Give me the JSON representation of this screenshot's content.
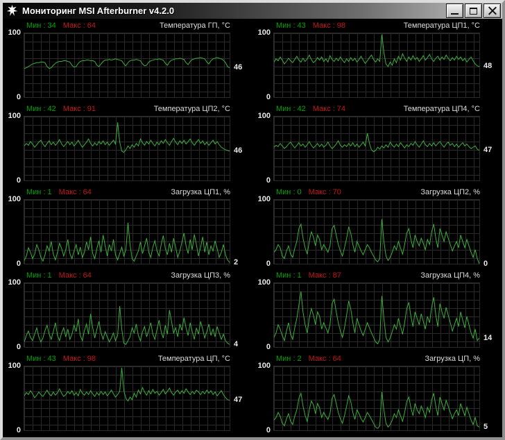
{
  "window": {
    "title": "Мониторинг MSI Afterburner v4.2.0"
  },
  "titlebar": {
    "buttons": [
      {
        "name": "minimize"
      },
      {
        "name": "maximize"
      },
      {
        "name": "close"
      }
    ]
  },
  "colors": {
    "line": "#3ab33a",
    "min_text": "#00a400",
    "max_text": "#c41616",
    "grid": "#2b2b2b",
    "panel_title": "#dcdcdc",
    "axis_text": "#eaeaea",
    "titlebar_gradient": [
      "#050505",
      "#c8c8c8"
    ]
  },
  "axis": {
    "top": "100",
    "bottom": "0"
  },
  "panels": [
    {
      "title": "Температура ГП, °C",
      "min_label": "Мин : 34",
      "max_label": "Макс : 64",
      "current": "46",
      "values": [
        45,
        46,
        48,
        50,
        52,
        53,
        54,
        54,
        55,
        55,
        54,
        48,
        45,
        46,
        50,
        53,
        55,
        56,
        56,
        57,
        57,
        56,
        55,
        50,
        47,
        48,
        53,
        56,
        57,
        57,
        58,
        58,
        57,
        57,
        56,
        50,
        48,
        52,
        56,
        58,
        58,
        59,
        58,
        59,
        60,
        59,
        58,
        57,
        52,
        49,
        54,
        57,
        58,
        58,
        59,
        58,
        57,
        52,
        49,
        50,
        55,
        57,
        58,
        59,
        59,
        60,
        59,
        58,
        53,
        50,
        55,
        58,
        59,
        60,
        60,
        61,
        60,
        59,
        54,
        51,
        56,
        59,
        60,
        61,
        61,
        62,
        61,
        60,
        55,
        52,
        57,
        60,
        61,
        62,
        61,
        60,
        58,
        54,
        48,
        46
      ]
    },
    {
      "title": "Температура ЦП1, °C",
      "min_label": "Мин : 43",
      "max_label": "Макс : 98",
      "current": "48",
      "values": [
        55,
        60,
        57,
        63,
        58,
        52,
        56,
        61,
        57,
        54,
        59,
        64,
        58,
        55,
        61,
        56,
        60,
        66,
        59,
        54,
        57,
        62,
        58,
        63,
        56,
        60,
        55,
        65,
        59,
        56,
        61,
        57,
        63,
        58,
        54,
        60,
        56,
        62,
        57,
        61,
        55,
        59,
        64,
        58,
        53,
        57,
        62,
        66,
        59,
        55,
        60,
        56,
        98,
        70,
        52,
        48,
        55,
        50,
        60,
        54,
        64,
        58,
        68,
        61,
        56,
        63,
        58,
        65,
        59,
        62,
        56,
        60,
        65,
        58,
        62,
        67,
        60,
        56,
        61,
        64,
        58,
        63,
        59,
        66,
        61,
        57,
        62,
        58,
        64,
        59,
        63,
        57,
        61,
        55,
        59,
        63,
        57,
        52,
        49,
        48
      ]
    },
    {
      "title": "Температура ЦП2, °C",
      "min_label": "Мин : 42",
      "max_label": "Макс : 91",
      "current": "46",
      "values": [
        54,
        58,
        55,
        61,
        57,
        52,
        56,
        60,
        63,
        57,
        53,
        58,
        62,
        56,
        60,
        55,
        59,
        64,
        57,
        53,
        57,
        61,
        56,
        60,
        54,
        58,
        63,
        57,
        52,
        56,
        60,
        65,
        58,
        54,
        59,
        55,
        61,
        57,
        62,
        56,
        60,
        55,
        59,
        63,
        57,
        91,
        60,
        46,
        44,
        48,
        54,
        50,
        56,
        52,
        58,
        54,
        65,
        59,
        55,
        61,
        57,
        63,
        58,
        54,
        60,
        56,
        62,
        58,
        64,
        59,
        55,
        61,
        66,
        60,
        56,
        62,
        58,
        63,
        57,
        61,
        65,
        59,
        55,
        60,
        64,
        58,
        62,
        56,
        60,
        55,
        59,
        63,
        57,
        61,
        56,
        52,
        50,
        48,
        47,
        46
      ]
    },
    {
      "title": "Температура ЦП4, °C",
      "min_label": "Мин : 42",
      "max_label": "Макс : 74",
      "current": "47",
      "values": [
        52,
        55,
        53,
        58,
        54,
        50,
        53,
        57,
        60,
        55,
        51,
        55,
        59,
        54,
        57,
        52,
        56,
        61,
        55,
        51,
        54,
        58,
        53,
        57,
        52,
        55,
        60,
        54,
        50,
        53,
        57,
        62,
        55,
        52,
        56,
        53,
        58,
        54,
        59,
        53,
        57,
        52,
        56,
        60,
        54,
        74,
        58,
        48,
        45,
        47,
        52,
        49,
        54,
        51,
        56,
        52,
        60,
        55,
        52,
        57,
        53,
        59,
        55,
        51,
        56,
        53,
        58,
        55,
        61,
        56,
        52,
        57,
        62,
        56,
        53,
        58,
        54,
        59,
        54,
        58,
        61,
        56,
        52,
        57,
        60,
        55,
        58,
        53,
        57,
        52,
        56,
        59,
        54,
        57,
        53,
        50,
        52,
        54,
        49,
        47
      ]
    },
    {
      "title": "Загрузка ЦП1, %",
      "min_label": "Мин : 1",
      "max_label": "Макс : 64",
      "current": "2",
      "values": [
        5,
        12,
        25,
        18,
        8,
        15,
        30,
        22,
        10,
        4,
        14,
        28,
        20,
        35,
        15,
        6,
        18,
        32,
        24,
        12,
        22,
        38,
        16,
        8,
        20,
        30,
        14,
        26,
        10,
        18,
        34,
        22,
        42,
        16,
        8,
        24,
        36,
        18,
        45,
        28,
        12,
        30,
        20,
        38,
        14,
        6,
        16,
        26,
        12,
        22,
        64,
        30,
        8,
        4,
        12,
        20,
        34,
        16,
        28,
        40,
        18,
        10,
        26,
        36,
        20,
        12,
        30,
        44,
        24,
        14,
        32,
        18,
        40,
        26,
        10,
        20,
        34,
        48,
        28,
        16,
        38,
        22,
        46,
        30,
        12,
        26,
        42,
        18,
        34,
        14,
        28,
        20,
        36,
        24,
        10,
        18,
        30,
        14,
        6,
        2
      ]
    },
    {
      "title": "Загрузка ЦП2, %",
      "min_label": "Мин : 0",
      "max_label": "Макс : 70",
      "current": "0",
      "values": [
        18,
        22,
        30,
        25,
        12,
        8,
        20,
        28,
        15,
        10,
        24,
        35,
        55,
        62,
        40,
        25,
        15,
        35,
        50,
        42,
        28,
        45,
        38,
        22,
        30,
        24,
        18,
        28,
        55,
        60,
        45,
        30,
        20,
        12,
        25,
        40,
        58,
        48,
        30,
        18,
        35,
        28,
        20,
        14,
        22,
        30,
        25,
        18,
        12,
        6,
        3,
        8,
        70,
        35,
        12,
        5,
        10,
        18,
        28,
        22,
        35,
        25,
        15,
        30,
        48,
        55,
        38,
        25,
        45,
        35,
        28,
        40,
        32,
        22,
        38,
        30,
        50,
        62,
        40,
        25,
        55,
        45,
        35,
        50,
        40,
        30,
        20,
        28,
        35,
        25,
        45,
        35,
        25,
        38,
        28,
        18,
        10,
        22,
        8,
        0
      ]
    },
    {
      "title": "Загрузка ЦП3, %",
      "min_label": "Мин : 1",
      "max_label": "Макс : 64",
      "current": "4",
      "values": [
        8,
        18,
        25,
        15,
        10,
        20,
        30,
        16,
        8,
        14,
        26,
        34,
        20,
        12,
        24,
        38,
        18,
        10,
        22,
        30,
        16,
        28,
        12,
        20,
        34,
        24,
        44,
        18,
        10,
        26,
        36,
        20,
        52,
        30,
        14,
        28,
        40,
        22,
        12,
        24,
        16,
        8,
        14,
        22,
        10,
        18,
        64,
        28,
        6,
        4,
        10,
        16,
        30,
        22,
        36,
        18,
        10,
        24,
        32,
        16,
        26,
        38,
        20,
        12,
        28,
        42,
        24,
        14,
        34,
        20,
        58,
        40,
        22,
        30,
        16,
        36,
        26,
        46,
        30,
        18,
        38,
        24,
        12,
        30,
        20,
        40,
        28,
        14,
        24,
        36,
        18,
        28,
        16,
        32,
        22,
        12,
        20,
        10,
        6,
        4
      ]
    },
    {
      "title": "Загрузка ЦП4, %",
      "min_label": "Мин : 1",
      "max_label": "Макс : 87",
      "current": "14",
      "values": [
        15,
        22,
        35,
        28,
        18,
        10,
        25,
        38,
        20,
        12,
        30,
        45,
        65,
        87,
        55,
        35,
        22,
        45,
        60,
        50,
        35,
        55,
        48,
        28,
        38,
        30,
        22,
        35,
        68,
        75,
        55,
        38,
        25,
        15,
        30,
        50,
        72,
        60,
        38,
        22,
        45,
        35,
        25,
        18,
        28,
        38,
        30,
        22,
        15,
        8,
        5,
        12,
        80,
        45,
        15,
        8,
        14,
        24,
        35,
        28,
        45,
        32,
        20,
        38,
        60,
        70,
        48,
        32,
        55,
        45,
        35,
        52,
        40,
        28,
        48,
        38,
        62,
        78,
        50,
        32,
        68,
        55,
        45,
        62,
        50,
        38,
        25,
        35,
        45,
        32,
        55,
        42,
        30,
        48,
        35,
        22,
        14,
        28,
        10,
        14
      ]
    },
    {
      "title": "Температура ЦП, °C",
      "min_label": "Мин : 43",
      "max_label": "Макс : 98",
      "current": "47",
      "values": [
        54,
        59,
        56,
        62,
        57,
        51,
        55,
        60,
        56,
        53,
        58,
        63,
        57,
        54,
        60,
        55,
        59,
        65,
        58,
        53,
        56,
        61,
        57,
        62,
        55,
        59,
        54,
        64,
        58,
        55,
        60,
        56,
        62,
        57,
        53,
        59,
        55,
        61,
        56,
        60,
        54,
        58,
        63,
        57,
        52,
        56,
        61,
        98,
        62,
        50,
        46,
        52,
        48,
        58,
        52,
        63,
        57,
        67,
        60,
        55,
        62,
        57,
        64,
        58,
        61,
        55,
        59,
        64,
        57,
        61,
        66,
        59,
        55,
        60,
        63,
        57,
        62,
        58,
        65,
        60,
        56,
        61,
        57,
        63,
        60,
        56,
        61,
        57,
        63,
        58,
        62,
        56,
        60,
        54,
        58,
        62,
        56,
        51,
        48,
        47
      ]
    },
    {
      "title": "Загрузка ЦП, %",
      "min_label": "Мин : 2",
      "max_label": "Макс : 64",
      "current": "5",
      "values": [
        16,
        20,
        28,
        22,
        11,
        7,
        18,
        26,
        14,
        9,
        22,
        32,
        50,
        58,
        38,
        23,
        14,
        32,
        46,
        40,
        26,
        42,
        35,
        20,
        28,
        22,
        17,
        26,
        50,
        56,
        42,
        28,
        18,
        11,
        23,
        38,
        54,
        45,
        28,
        17,
        32,
        26,
        18,
        13,
        20,
        28,
        23,
        17,
        11,
        5,
        3,
        7,
        60,
        32,
        11,
        5,
        9,
        16,
        26,
        20,
        32,
        23,
        14,
        28,
        45,
        52,
        35,
        23,
        42,
        32,
        26,
        38,
        30,
        20,
        36,
        28,
        47,
        58,
        38,
        23,
        52,
        42,
        32,
        47,
        38,
        28,
        18,
        26,
        32,
        23,
        42,
        32,
        23,
        36,
        26,
        16,
        9,
        20,
        7,
        5
      ]
    }
  ]
}
